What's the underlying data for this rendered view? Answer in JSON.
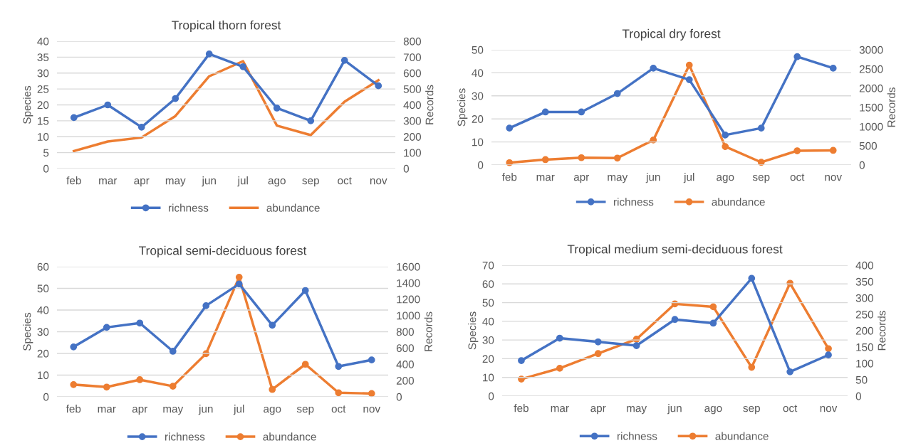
{
  "chart_data": [
    {
      "type": "line",
      "title": "Tropical thorn forest",
      "ylabel": "Species",
      "y2label": "Records",
      "categories": [
        "feb",
        "mar",
        "apr",
        "may",
        "jun",
        "jul",
        "ago",
        "sep",
        "oct",
        "nov"
      ],
      "ylim": [
        0,
        40
      ],
      "yticks": [
        0,
        5,
        10,
        15,
        20,
        25,
        30,
        35,
        40
      ],
      "y2lim": [
        0,
        800
      ],
      "y2ticks": [
        0,
        100,
        200,
        300,
        400,
        500,
        600,
        700,
        800
      ],
      "grid": "y",
      "legend": "bottom",
      "series": [
        {
          "name": "richness",
          "color": "#4472c4",
          "marker": "circle",
          "values": [
            16,
            20,
            13,
            22,
            36,
            32,
            19,
            15,
            34,
            26
          ]
        },
        {
          "name": "abundance",
          "color": "#ed7d31",
          "marker": "none",
          "axis": "y2",
          "values": [
            110,
            170,
            195,
            330,
            580,
            675,
            270,
            210,
            420,
            555
          ]
        }
      ]
    },
    {
      "type": "line",
      "title": "Tropical dry forest",
      "ylabel": "Species",
      "y2label": "Records",
      "categories": [
        "feb",
        "mar",
        "apr",
        "may",
        "jun",
        "jul",
        "ago",
        "sep",
        "oct",
        "nov"
      ],
      "ylim": [
        0,
        50
      ],
      "yticks": [
        0,
        10,
        20,
        30,
        40,
        50
      ],
      "y2lim": [
        0,
        3000
      ],
      "y2ticks": [
        0,
        500,
        1000,
        1500,
        2000,
        2500,
        3000
      ],
      "grid": "y",
      "legend": "bottom",
      "series": [
        {
          "name": "richness",
          "color": "#4472c4",
          "marker": "circle",
          "values": [
            16,
            23,
            23,
            31,
            42,
            37,
            13,
            16,
            47,
            42
          ]
        },
        {
          "name": "abundance",
          "color": "#ed7d31",
          "marker": "circle",
          "axis": "y2",
          "values": [
            60,
            140,
            190,
            180,
            650,
            2600,
            480,
            70,
            370,
            380
          ]
        }
      ]
    },
    {
      "type": "line",
      "title": "Tropical semi-deciduous forest",
      "ylabel": "Species",
      "y2label": "Records",
      "categories": [
        "feb",
        "mar",
        "apr",
        "may",
        "jun",
        "jul",
        "ago",
        "sep",
        "oct",
        "nov"
      ],
      "ylim": [
        0,
        60
      ],
      "yticks": [
        0,
        10,
        20,
        30,
        40,
        50,
        60
      ],
      "y2lim": [
        0,
        1600
      ],
      "y2ticks": [
        0,
        200,
        400,
        600,
        800,
        1000,
        1200,
        1400,
        1600
      ],
      "grid": "y",
      "legend": "bottom",
      "series": [
        {
          "name": "richness",
          "color": "#4472c4",
          "marker": "circle",
          "values": [
            23,
            32,
            34,
            21,
            42,
            52,
            33,
            49,
            14,
            17
          ]
        },
        {
          "name": "abundance",
          "color": "#ed7d31",
          "marker": "circle",
          "axis": "y2",
          "values": [
            150,
            120,
            210,
            130,
            530,
            1470,
            90,
            400,
            50,
            40
          ]
        }
      ]
    },
    {
      "type": "line",
      "title": "Tropical medium semi-deciduous forest",
      "ylabel": "Species",
      "y2label": "Records",
      "categories": [
        "feb",
        "mar",
        "apr",
        "may",
        "jun",
        "ago",
        "sep",
        "oct",
        "nov"
      ],
      "ylim": [
        0,
        70
      ],
      "yticks": [
        0,
        10,
        20,
        30,
        40,
        50,
        60,
        70
      ],
      "y2lim": [
        0,
        400
      ],
      "y2ticks": [
        0,
        50,
        100,
        150,
        200,
        250,
        300,
        350,
        400
      ],
      "grid": "y",
      "legend": "bottom",
      "series": [
        {
          "name": "richness",
          "color": "#4472c4",
          "marker": "circle",
          "values": [
            19,
            31,
            29,
            27,
            41,
            39,
            63,
            13,
            22
          ]
        },
        {
          "name": "abundance",
          "color": "#ed7d31",
          "marker": "circle",
          "axis": "y2",
          "values": [
            52,
            85,
            130,
            174,
            282,
            273,
            88,
            345,
            145
          ]
        }
      ]
    }
  ]
}
